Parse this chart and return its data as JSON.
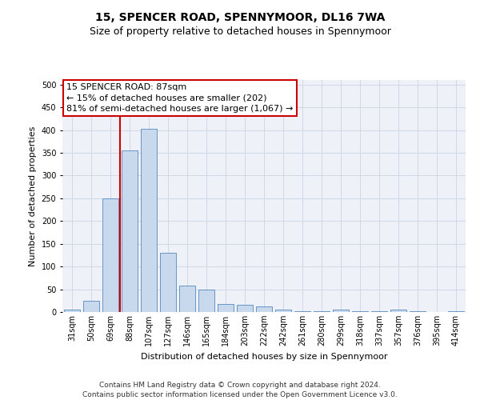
{
  "title": "15, SPENCER ROAD, SPENNYMOOR, DL16 7WA",
  "subtitle": "Size of property relative to detached houses in Spennymoor",
  "xlabel": "Distribution of detached houses by size in Spennymoor",
  "ylabel": "Number of detached properties",
  "categories": [
    "31sqm",
    "50sqm",
    "69sqm",
    "88sqm",
    "107sqm",
    "127sqm",
    "146sqm",
    "165sqm",
    "184sqm",
    "203sqm",
    "222sqm",
    "242sqm",
    "261sqm",
    "280sqm",
    "299sqm",
    "318sqm",
    "337sqm",
    "357sqm",
    "376sqm",
    "395sqm",
    "414sqm"
  ],
  "values": [
    5,
    25,
    250,
    355,
    403,
    130,
    58,
    49,
    17,
    15,
    13,
    5,
    2,
    2,
    5,
    2,
    2,
    5,
    2,
    0,
    2
  ],
  "bar_color": "#c8d9ed",
  "bar_edge_color": "#5588bb",
  "annotation_text": "15 SPENCER ROAD: 87sqm\n← 15% of detached houses are smaller (202)\n81% of semi-detached houses are larger (1,067) →",
  "annotation_box_color": "#ffffff",
  "annotation_box_edge_color": "#cc0000",
  "vline_color": "#cc0000",
  "ylim": [
    0,
    510
  ],
  "grid_color": "#d0d8e8",
  "bg_color": "#eef2f8",
  "footer_text": "Contains HM Land Registry data © Crown copyright and database right 2024.\nContains public sector information licensed under the Open Government Licence v3.0.",
  "title_fontsize": 10,
  "subtitle_fontsize": 9,
  "axis_label_fontsize": 8,
  "tick_fontsize": 7,
  "annotation_fontsize": 8,
  "footer_fontsize": 6.5
}
